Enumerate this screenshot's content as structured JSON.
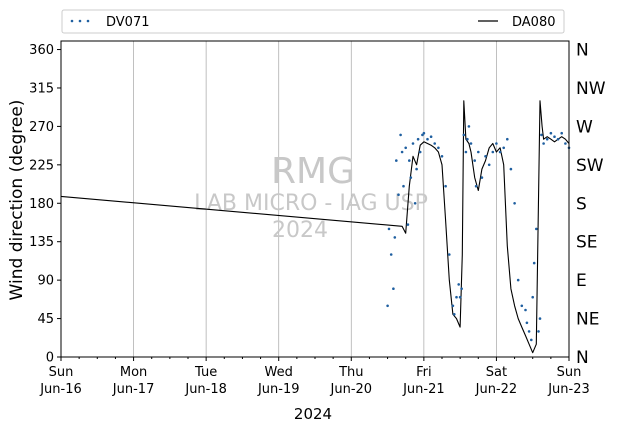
{
  "chart_data": {
    "type": "line",
    "xlabel": "2024",
    "ylabel": "Wind direction (degree)",
    "ylim": [
      0,
      370
    ],
    "y_ticks": [
      0,
      45,
      90,
      135,
      180,
      225,
      270,
      315,
      360
    ],
    "x_ticks": [
      {
        "day": 0,
        "line1": "Sun",
        "line2": "Jun-16"
      },
      {
        "day": 1,
        "line1": "Mon",
        "line2": "Jun-17"
      },
      {
        "day": 2,
        "line1": "Tue",
        "line2": "Jun-18"
      },
      {
        "day": 3,
        "line1": "Wed",
        "line2": "Jun-19"
      },
      {
        "day": 4,
        "line1": "Thu",
        "line2": "Jun-20"
      },
      {
        "day": 5,
        "line1": "Fri",
        "line2": "Jun-21"
      },
      {
        "day": 6,
        "line1": "Sat",
        "line2": "Jun-22"
      },
      {
        "day": 7,
        "line1": "Sun",
        "line2": "Jun-23"
      }
    ],
    "compass": [
      {
        "deg": 0,
        "label": "N"
      },
      {
        "deg": 45,
        "label": "NE"
      },
      {
        "deg": 90,
        "label": "E"
      },
      {
        "deg": 135,
        "label": "SE"
      },
      {
        "deg": 180,
        "label": "S"
      },
      {
        "deg": 225,
        "label": "SW"
      },
      {
        "deg": 270,
        "label": "W"
      },
      {
        "deg": 315,
        "label": "NW"
      },
      {
        "deg": 360,
        "label": "N"
      }
    ],
    "watermark": {
      "line1": "RMG",
      "line2": "LAB MICRO - IAG USP",
      "line3": "2024"
    },
    "grid": "vertical at day ticks",
    "legend_placement": "top, outside plot",
    "series": [
      {
        "name": "DV071",
        "style": "dotted points",
        "color": "#1f5fa0",
        "x": [
          4.5,
          4.52,
          4.55,
          4.58,
          4.6,
          4.62,
          4.65,
          4.68,
          4.7,
          4.72,
          4.75,
          4.78,
          4.8,
          4.82,
          4.85,
          4.88,
          4.9,
          4.92,
          4.95,
          4.98,
          5.0,
          5.05,
          5.1,
          5.15,
          5.2,
          5.25,
          5.3,
          5.35,
          5.4,
          5.42,
          5.45,
          5.48,
          5.5,
          5.52,
          5.55,
          5.58,
          5.6,
          5.62,
          5.65,
          5.7,
          5.72,
          5.75,
          5.8,
          5.85,
          5.9,
          5.95,
          6.0,
          6.05,
          6.1,
          6.15,
          6.2,
          6.25,
          6.3,
          6.35,
          6.4,
          6.42,
          6.45,
          6.48,
          6.5,
          6.52,
          6.55,
          6.58,
          6.6,
          6.62,
          6.65,
          6.7,
          6.75,
          6.8,
          6.85,
          6.9,
          6.95,
          7.0
        ],
        "y": [
          60,
          150,
          120,
          80,
          140,
          230,
          190,
          260,
          240,
          200,
          245,
          155,
          230,
          210,
          250,
          180,
          220,
          255,
          240,
          260,
          262,
          255,
          258,
          250,
          245,
          235,
          200,
          120,
          60,
          50,
          70,
          85,
          70,
          80,
          260,
          240,
          255,
          270,
          250,
          230,
          200,
          240,
          210,
          235,
          225,
          240,
          250,
          240,
          245,
          255,
          220,
          180,
          90,
          60,
          55,
          40,
          30,
          20,
          70,
          110,
          150,
          30,
          45,
          260,
          250,
          255,
          262,
          258,
          255,
          262,
          250,
          245
        ]
      },
      {
        "name": "DA080",
        "style": "solid line",
        "color": "#000000",
        "x": [
          0,
          4.7,
          4.75,
          4.8,
          4.85,
          4.9,
          4.95,
          5.0,
          5.05,
          5.1,
          5.15,
          5.2,
          5.25,
          5.3,
          5.35,
          5.4,
          5.45,
          5.5,
          5.53,
          5.55,
          5.58,
          5.62,
          5.65,
          5.7,
          5.75,
          5.8,
          5.85,
          5.9,
          5.95,
          6.0,
          6.05,
          6.1,
          6.15,
          6.2,
          6.25,
          6.3,
          6.35,
          6.4,
          6.45,
          6.5,
          6.55,
          6.6,
          6.63,
          6.65,
          6.7,
          6.75,
          6.8,
          6.85,
          6.9,
          6.95,
          7.0
        ],
        "y": [
          188,
          153,
          145,
          200,
          235,
          225,
          248,
          252,
          250,
          248,
          245,
          240,
          225,
          160,
          90,
          50,
          45,
          35,
          120,
          300,
          255,
          250,
          240,
          210,
          195,
          220,
          230,
          245,
          250,
          240,
          245,
          225,
          130,
          80,
          60,
          45,
          35,
          25,
          15,
          5,
          15,
          300,
          270,
          255,
          258,
          255,
          252,
          255,
          258,
          255,
          250
        ]
      }
    ]
  }
}
